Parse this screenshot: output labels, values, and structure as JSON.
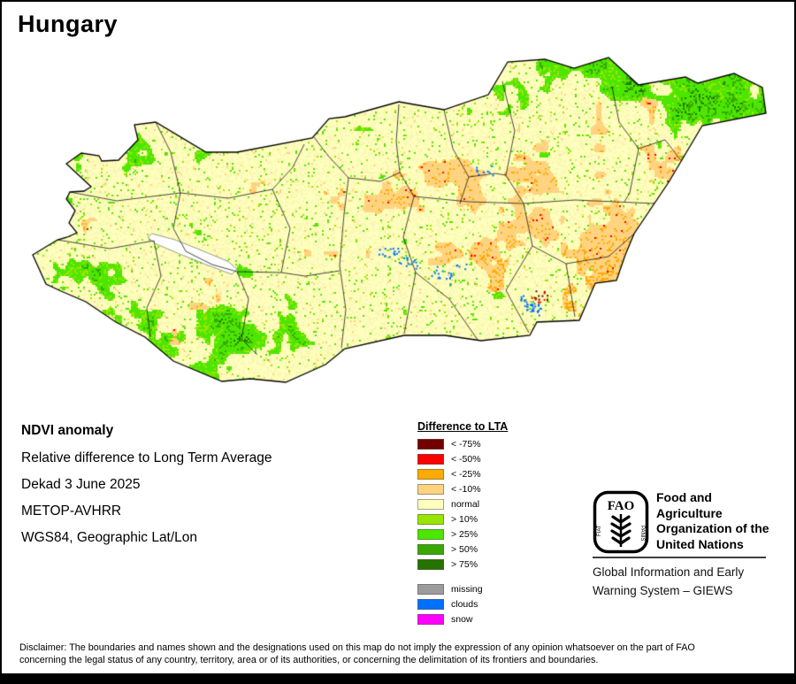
{
  "title": "Hungary",
  "info": {
    "heading": "NDVI anomaly",
    "lines": [
      "Relative difference to Long Term Average",
      "Dekad 3 June 2025",
      "METOP-AVHRR",
      "WGS84, Geographic Lat/Lon"
    ]
  },
  "legend": {
    "title": "Difference to LTA",
    "items": [
      {
        "label": "< -75%",
        "color": "#730000"
      },
      {
        "label": "< -50%",
        "color": "#FF0000"
      },
      {
        "label": "< -25%",
        "color": "#FFAA00"
      },
      {
        "label": "< -10%",
        "color": "#FFD37F"
      },
      {
        "label": "normal",
        "color": "#FFFFBE"
      },
      {
        "label": "> 10%",
        "color": "#98E600"
      },
      {
        "label": "> 25%",
        "color": "#4CE600"
      },
      {
        "label": "> 50%",
        "color": "#38A800"
      },
      {
        "label": "> 75%",
        "color": "#267300"
      },
      {
        "label": "missing",
        "color": "#9C9C9C"
      },
      {
        "label": "clouds",
        "color": "#0070FF"
      },
      {
        "label": "snow",
        "color": "#FF00FF"
      }
    ]
  },
  "fao": {
    "logo_text": "FAO",
    "logo_motto_left": "FIAT",
    "logo_motto_right": "PANIS",
    "org_lines": [
      "Food and Agriculture",
      "Organization of the",
      "United Nations"
    ],
    "giews_lines": [
      "Global Information and Early",
      "Warning System – GIEWS"
    ]
  },
  "disclaimer": {
    "line1": "Disclaimer: The boundaries and names shown and the designations used on this map do not imply the expression of any opinion whatsoever on the part of FAO",
    "line2": "concerning the legal status of any country, territory, area or of its authorities, or concerning the delimitation of its frontiers and boundaries."
  }
}
